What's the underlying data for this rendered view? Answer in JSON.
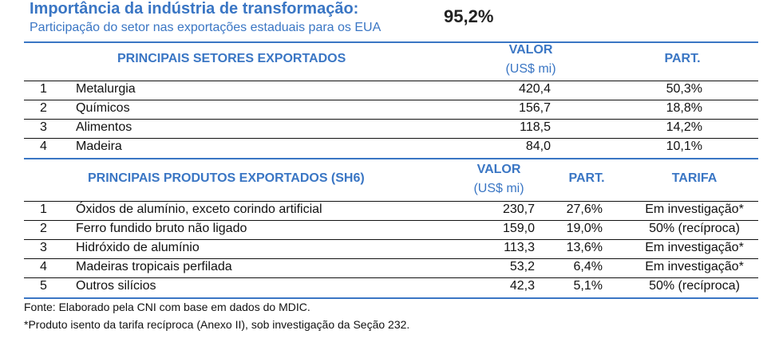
{
  "header": {
    "title": "Importância da indústria de transformação:",
    "subtitle": "Participação do setor nas exportações estaduais para os EUA",
    "share": "95,2%"
  },
  "sectors": {
    "title": "PRINCIPAIS SETORES EXPORTADOS",
    "col_value": "VALOR",
    "col_value_unit": "(US$ mi)",
    "col_part": "PART.",
    "rows": [
      {
        "rank": "1",
        "name": "Metalurgia",
        "value": "420,4",
        "part": "50,3%"
      },
      {
        "rank": "2",
        "name": "Químicos",
        "value": "156,7",
        "part": "18,8%"
      },
      {
        "rank": "3",
        "name": "Alimentos",
        "value": "118,5",
        "part": "14,2%"
      },
      {
        "rank": "4",
        "name": "Madeira",
        "value": "84,0",
        "part": "10,1%"
      }
    ]
  },
  "products": {
    "title": "PRINCIPAIS PRODUTOS EXPORTADOS (SH6)",
    "col_value": "VALOR",
    "col_value_unit": "(US$ mi)",
    "col_part": "PART.",
    "col_tariff": "TARIFA",
    "rows": [
      {
        "rank": "1",
        "name": "Óxidos de alumínio, exceto corindo artificial",
        "value": "230,7",
        "part": "27,6%",
        "tariff": "Em investigação*"
      },
      {
        "rank": "2",
        "name": "Ferro fundido bruto não ligado",
        "value": "159,0",
        "part": "19,0%",
        "tariff": "50% (recíproca)"
      },
      {
        "rank": "3",
        "name": "Hidróxido de alumínio",
        "value": "113,3",
        "part": "13,6%",
        "tariff": "Em investigação*"
      },
      {
        "rank": "4",
        "name": "Madeiras tropicais perfilada",
        "value": "53,2",
        "part": "6,4%",
        "tariff": "Em investigação*"
      },
      {
        "rank": "5",
        "name": "Outros silícios",
        "value": "42,3",
        "part": "5,1%",
        "tariff": "50% (recíproca)"
      }
    ]
  },
  "footnotes": {
    "source": "Fonte: Elaborado pela CNI com base em dados do MDIC.",
    "note": "*Produto isento da tarifa recíproca (Anexo II), sob investigação da Seção 232."
  }
}
